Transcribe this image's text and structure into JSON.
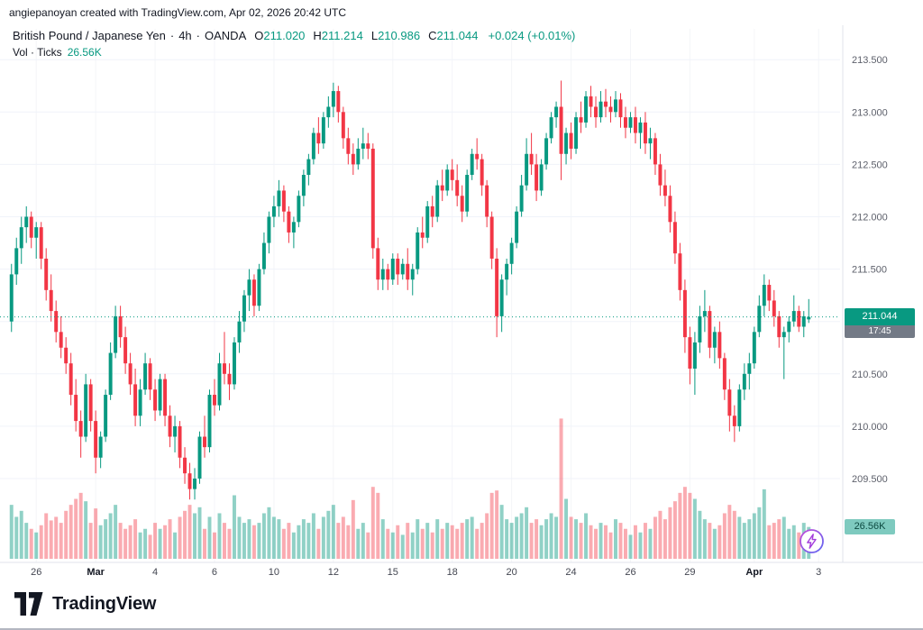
{
  "attribution": "angiepanoyan created with TradingView.com, Apr 02, 2026 20:42 UTC",
  "legend": {
    "symbol": "British Pound / Japanese Yen",
    "dot": "·",
    "interval": "4h",
    "exchange": "OANDA",
    "ohlc": [
      {
        "k": "O",
        "v": "211.020"
      },
      {
        "k": "H",
        "v": "211.214"
      },
      {
        "k": "L",
        "v": "210.986"
      },
      {
        "k": "C",
        "v": "211.044"
      }
    ],
    "change": "+0.024 (+0.01%)",
    "volume_label": "Vol · Ticks",
    "volume_value": "26.56K"
  },
  "price_axis": {
    "last_price": "211.044",
    "countdown": "17:45",
    "volume_badge": "26.56K"
  },
  "footer": {
    "brand": "TradingView"
  },
  "chart_data": {
    "type": "candlestick",
    "title": "British Pound / Japanese Yen · 4h · OANDA",
    "panes": [
      "price",
      "volume_ticks"
    ],
    "last": {
      "open": 211.02,
      "high": 211.214,
      "low": 210.986,
      "close": 211.044,
      "change": 0.024,
      "change_pct": 0.01,
      "volume": "26.56K"
    },
    "price_ylim": [
      209.3,
      213.55
    ],
    "grid_prices": [
      213.5,
      213.0,
      212.5,
      212.0,
      211.5,
      211.0,
      210.5,
      210.0,
      209.5
    ],
    "x_labels": [
      {
        "label": "26",
        "idx": 5
      },
      {
        "label": "Mar",
        "idx": 17,
        "bold": true
      },
      {
        "label": "4",
        "idx": 29
      },
      {
        "label": "6",
        "idx": 41
      },
      {
        "label": "10",
        "idx": 53
      },
      {
        "label": "12",
        "idx": 65
      },
      {
        "label": "15",
        "idx": 77
      },
      {
        "label": "18",
        "idx": 89
      },
      {
        "label": "20",
        "idx": 101
      },
      {
        "label": "24",
        "idx": 113
      },
      {
        "label": "26",
        "idx": 125
      },
      {
        "label": "29",
        "idx": 137
      },
      {
        "label": "Apr",
        "idx": 150,
        "bold": true
      },
      {
        "label": "3",
        "idx": 163
      }
    ],
    "columns": [
      "open",
      "high",
      "low",
      "close",
      "volume_k_ticks"
    ],
    "candles": [
      [
        211.0,
        211.55,
        210.9,
        211.45,
        45
      ],
      [
        211.45,
        211.8,
        211.35,
        211.7,
        35
      ],
      [
        211.7,
        212.0,
        211.55,
        211.9,
        40
      ],
      [
        211.9,
        212.1,
        211.75,
        212.0,
        30
      ],
      [
        212.0,
        212.05,
        211.7,
        211.8,
        25
      ],
      [
        211.8,
        211.95,
        211.6,
        211.9,
        22
      ],
      [
        211.9,
        211.95,
        211.5,
        211.6,
        28
      ],
      [
        211.6,
        211.7,
        211.2,
        211.3,
        38
      ],
      [
        211.3,
        211.45,
        211.0,
        211.1,
        32
      ],
      [
        211.1,
        211.2,
        210.8,
        210.9,
        35
      ],
      [
        210.9,
        211.05,
        210.65,
        210.75,
        30
      ],
      [
        210.75,
        210.85,
        210.5,
        210.6,
        40
      ],
      [
        210.6,
        210.7,
        210.2,
        210.3,
        45
      ],
      [
        210.3,
        210.45,
        209.95,
        210.05,
        50
      ],
      [
        210.05,
        210.15,
        209.7,
        209.9,
        55
      ],
      [
        209.9,
        210.5,
        209.85,
        210.4,
        48
      ],
      [
        210.4,
        210.45,
        209.95,
        210.05,
        30
      ],
      [
        210.05,
        210.15,
        209.55,
        209.7,
        42
      ],
      [
        209.7,
        209.95,
        209.6,
        209.9,
        28
      ],
      [
        209.9,
        210.35,
        209.85,
        210.3,
        33
      ],
      [
        210.3,
        210.8,
        210.25,
        210.7,
        38
      ],
      [
        210.7,
        211.15,
        210.65,
        211.05,
        45
      ],
      [
        211.05,
        211.15,
        210.75,
        210.85,
        30
      ],
      [
        210.85,
        210.95,
        210.5,
        210.6,
        25
      ],
      [
        210.6,
        210.7,
        210.3,
        210.4,
        28
      ],
      [
        210.4,
        210.55,
        210.0,
        210.1,
        33
      ],
      [
        210.1,
        210.45,
        210.0,
        210.35,
        22
      ],
      [
        210.35,
        210.7,
        210.3,
        210.6,
        25
      ],
      [
        210.6,
        210.65,
        210.25,
        210.35,
        20
      ],
      [
        210.35,
        210.45,
        210.05,
        210.15,
        30
      ],
      [
        210.15,
        210.5,
        210.1,
        210.45,
        25
      ],
      [
        210.45,
        210.5,
        210.0,
        210.1,
        28
      ],
      [
        210.1,
        210.2,
        209.8,
        209.9,
        33
      ],
      [
        209.9,
        210.1,
        209.75,
        210.0,
        22
      ],
      [
        210.0,
        210.05,
        209.6,
        209.7,
        35
      ],
      [
        209.7,
        209.8,
        209.45,
        209.55,
        40
      ],
      [
        209.55,
        209.65,
        209.3,
        209.4,
        45
      ],
      [
        209.4,
        209.6,
        209.3,
        209.5,
        38
      ],
      [
        209.5,
        209.95,
        209.45,
        209.9,
        43
      ],
      [
        209.9,
        210.1,
        209.7,
        209.8,
        25
      ],
      [
        209.8,
        210.35,
        209.75,
        210.3,
        35
      ],
      [
        210.3,
        210.45,
        210.1,
        210.2,
        22
      ],
      [
        210.2,
        210.7,
        210.15,
        210.6,
        38
      ],
      [
        210.6,
        210.9,
        210.4,
        210.5,
        30
      ],
      [
        210.5,
        210.6,
        210.25,
        210.4,
        25
      ],
      [
        210.4,
        210.85,
        210.35,
        210.8,
        53
      ],
      [
        210.8,
        211.1,
        210.7,
        211.0,
        35
      ],
      [
        211.0,
        211.3,
        210.9,
        211.25,
        30
      ],
      [
        211.25,
        211.5,
        211.1,
        211.4,
        33
      ],
      [
        211.4,
        211.45,
        211.05,
        211.15,
        28
      ],
      [
        211.15,
        211.55,
        211.1,
        211.5,
        30
      ],
      [
        211.5,
        211.85,
        211.45,
        211.75,
        38
      ],
      [
        211.75,
        212.05,
        211.65,
        212.0,
        43
      ],
      [
        212.0,
        212.2,
        211.9,
        212.1,
        35
      ],
      [
        212.1,
        212.35,
        212.0,
        212.25,
        33
      ],
      [
        212.25,
        212.3,
        211.95,
        212.05,
        25
      ],
      [
        212.05,
        212.1,
        211.75,
        211.85,
        30
      ],
      [
        211.85,
        212.0,
        211.7,
        211.95,
        22
      ],
      [
        211.95,
        212.25,
        211.9,
        212.2,
        28
      ],
      [
        212.2,
        212.45,
        212.1,
        212.4,
        33
      ],
      [
        212.4,
        212.6,
        212.3,
        212.55,
        30
      ],
      [
        212.55,
        212.85,
        212.5,
        212.8,
        38
      ],
      [
        212.8,
        212.95,
        212.6,
        212.7,
        25
      ],
      [
        212.7,
        213.0,
        212.65,
        212.95,
        35
      ],
      [
        212.95,
        213.15,
        212.85,
        213.05,
        40
      ],
      [
        213.05,
        213.28,
        212.95,
        213.2,
        45
      ],
      [
        213.2,
        213.25,
        212.9,
        213.0,
        30
      ],
      [
        213.0,
        213.05,
        212.65,
        212.75,
        35
      ],
      [
        212.75,
        212.85,
        212.5,
        212.6,
        28
      ],
      [
        212.6,
        212.7,
        212.4,
        212.5,
        49
      ],
      [
        212.5,
        212.75,
        212.45,
        212.65,
        25
      ],
      [
        212.65,
        212.85,
        212.55,
        212.7,
        30
      ],
      [
        212.7,
        212.8,
        212.55,
        212.65,
        22
      ],
      [
        212.65,
        212.7,
        211.6,
        211.7,
        60
      ],
      [
        211.7,
        211.8,
        211.3,
        211.4,
        55
      ],
      [
        211.4,
        211.6,
        211.3,
        211.5,
        33
      ],
      [
        211.5,
        211.55,
        211.3,
        211.4,
        25
      ],
      [
        211.4,
        211.65,
        211.35,
        211.6,
        22
      ],
      [
        211.6,
        211.65,
        211.35,
        211.45,
        28
      ],
      [
        211.45,
        211.6,
        211.4,
        211.55,
        20
      ],
      [
        211.55,
        211.7,
        211.3,
        211.4,
        30
      ],
      [
        211.4,
        211.55,
        211.25,
        211.5,
        22
      ],
      [
        211.5,
        211.9,
        211.45,
        211.85,
        33
      ],
      [
        211.85,
        212.0,
        211.7,
        211.8,
        25
      ],
      [
        211.8,
        212.15,
        211.75,
        212.1,
        30
      ],
      [
        212.1,
        212.2,
        211.9,
        212.0,
        22
      ],
      [
        212.0,
        212.35,
        211.95,
        212.3,
        33
      ],
      [
        212.3,
        212.45,
        212.15,
        212.25,
        25
      ],
      [
        212.25,
        212.5,
        212.2,
        212.45,
        30
      ],
      [
        212.45,
        212.55,
        212.25,
        212.35,
        28
      ],
      [
        212.35,
        212.5,
        212.1,
        212.2,
        25
      ],
      [
        212.2,
        212.3,
        211.95,
        212.05,
        30
      ],
      [
        212.05,
        212.45,
        212.0,
        212.4,
        33
      ],
      [
        212.4,
        212.65,
        212.35,
        212.6,
        35
      ],
      [
        212.6,
        212.75,
        212.45,
        212.55,
        25
      ],
      [
        212.55,
        212.6,
        212.2,
        212.3,
        30
      ],
      [
        212.3,
        212.35,
        211.9,
        212.0,
        38
      ],
      [
        212.0,
        212.05,
        211.5,
        211.6,
        55
      ],
      [
        211.6,
        211.7,
        210.85,
        211.05,
        57
      ],
      [
        211.05,
        211.45,
        210.9,
        211.4,
        45
      ],
      [
        211.4,
        211.6,
        211.25,
        211.55,
        33
      ],
      [
        211.55,
        211.8,
        211.45,
        211.75,
        30
      ],
      [
        211.75,
        212.1,
        211.7,
        212.05,
        35
      ],
      [
        212.05,
        212.4,
        212.0,
        212.3,
        38
      ],
      [
        212.3,
        212.75,
        212.25,
        212.6,
        43
      ],
      [
        212.6,
        212.8,
        212.4,
        212.5,
        30
      ],
      [
        212.5,
        212.6,
        212.15,
        212.25,
        33
      ],
      [
        212.25,
        212.55,
        212.2,
        212.5,
        28
      ],
      [
        212.5,
        212.8,
        212.45,
        212.75,
        33
      ],
      [
        212.75,
        213.0,
        212.7,
        212.95,
        38
      ],
      [
        212.95,
        213.1,
        212.85,
        213.05,
        35
      ],
      [
        213.05,
        213.3,
        212.35,
        212.6,
        117
      ],
      [
        212.6,
        212.85,
        212.5,
        212.8,
        50
      ],
      [
        212.8,
        212.9,
        212.55,
        212.65,
        35
      ],
      [
        212.65,
        213.0,
        212.6,
        212.95,
        33
      ],
      [
        212.95,
        213.1,
        212.8,
        212.9,
        30
      ],
      [
        212.9,
        213.2,
        212.85,
        213.15,
        38
      ],
      [
        213.15,
        213.25,
        212.95,
        213.05,
        28
      ],
      [
        213.05,
        213.15,
        212.85,
        212.95,
        25
      ],
      [
        212.95,
        213.2,
        212.9,
        213.1,
        30
      ],
      [
        213.1,
        213.22,
        212.95,
        213.05,
        28
      ],
      [
        213.05,
        213.15,
        212.9,
        213.0,
        22
      ],
      [
        213.0,
        213.2,
        212.95,
        213.12,
        33
      ],
      [
        213.12,
        213.18,
        212.85,
        212.95,
        30
      ],
      [
        212.95,
        213.05,
        212.75,
        212.85,
        25
      ],
      [
        212.85,
        213.0,
        212.8,
        212.95,
        20
      ],
      [
        212.95,
        213.05,
        212.7,
        212.8,
        28
      ],
      [
        212.8,
        212.95,
        212.65,
        212.9,
        22
      ],
      [
        212.9,
        213.0,
        212.6,
        212.7,
        30
      ],
      [
        212.7,
        212.85,
        212.55,
        212.75,
        25
      ],
      [
        212.75,
        212.8,
        212.4,
        212.5,
        35
      ],
      [
        212.5,
        212.6,
        212.2,
        212.3,
        40
      ],
      [
        212.3,
        212.45,
        212.1,
        212.2,
        33
      ],
      [
        212.2,
        212.3,
        211.85,
        211.95,
        43
      ],
      [
        211.95,
        212.05,
        211.55,
        211.65,
        48
      ],
      [
        211.65,
        211.75,
        211.2,
        211.3,
        55
      ],
      [
        211.3,
        211.4,
        210.7,
        210.85,
        60
      ],
      [
        210.85,
        210.95,
        210.4,
        210.55,
        55
      ],
      [
        210.55,
        210.9,
        210.3,
        210.8,
        50
      ],
      [
        210.8,
        211.15,
        210.7,
        211.05,
        40
      ],
      [
        211.05,
        211.3,
        210.9,
        211.1,
        33
      ],
      [
        211.1,
        211.15,
        210.65,
        210.75,
        30
      ],
      [
        210.75,
        210.95,
        210.6,
        210.9,
        25
      ],
      [
        210.9,
        211.0,
        210.55,
        210.65,
        28
      ],
      [
        210.65,
        210.7,
        210.25,
        210.35,
        38
      ],
      [
        210.35,
        210.45,
        209.95,
        210.1,
        45
      ],
      [
        210.1,
        210.2,
        209.85,
        210.0,
        40
      ],
      [
        210.0,
        210.4,
        209.95,
        210.35,
        35
      ],
      [
        210.35,
        210.6,
        210.25,
        210.5,
        30
      ],
      [
        210.5,
        210.7,
        210.35,
        210.6,
        33
      ],
      [
        210.6,
        210.95,
        210.55,
        210.9,
        38
      ],
      [
        210.9,
        211.25,
        210.85,
        211.15,
        43
      ],
      [
        211.15,
        211.45,
        211.05,
        211.35,
        58
      ],
      [
        211.35,
        211.4,
        211.1,
        211.2,
        28
      ],
      [
        211.2,
        211.3,
        210.95,
        211.05,
        30
      ],
      [
        211.05,
        211.1,
        210.75,
        210.85,
        33
      ],
      [
        210.85,
        210.95,
        210.45,
        210.9,
        35
      ],
      [
        210.9,
        211.05,
        210.8,
        211.0,
        25
      ],
      [
        211.0,
        211.25,
        210.95,
        211.1,
        28
      ],
      [
        211.1,
        211.15,
        210.9,
        210.95,
        22
      ],
      [
        210.95,
        211.1,
        210.85,
        211.05,
        30
      ],
      [
        211.02,
        211.214,
        210.986,
        211.044,
        26.56
      ]
    ],
    "colors": {
      "up": "#089981",
      "down": "#F23645",
      "vol_up": "rgba(8,153,129,0.45)",
      "vol_down": "rgba(242,54,69,0.42)",
      "grid": "#f0f3fa",
      "axis_text": "#5d606b",
      "last_price_line": "#089981"
    }
  }
}
